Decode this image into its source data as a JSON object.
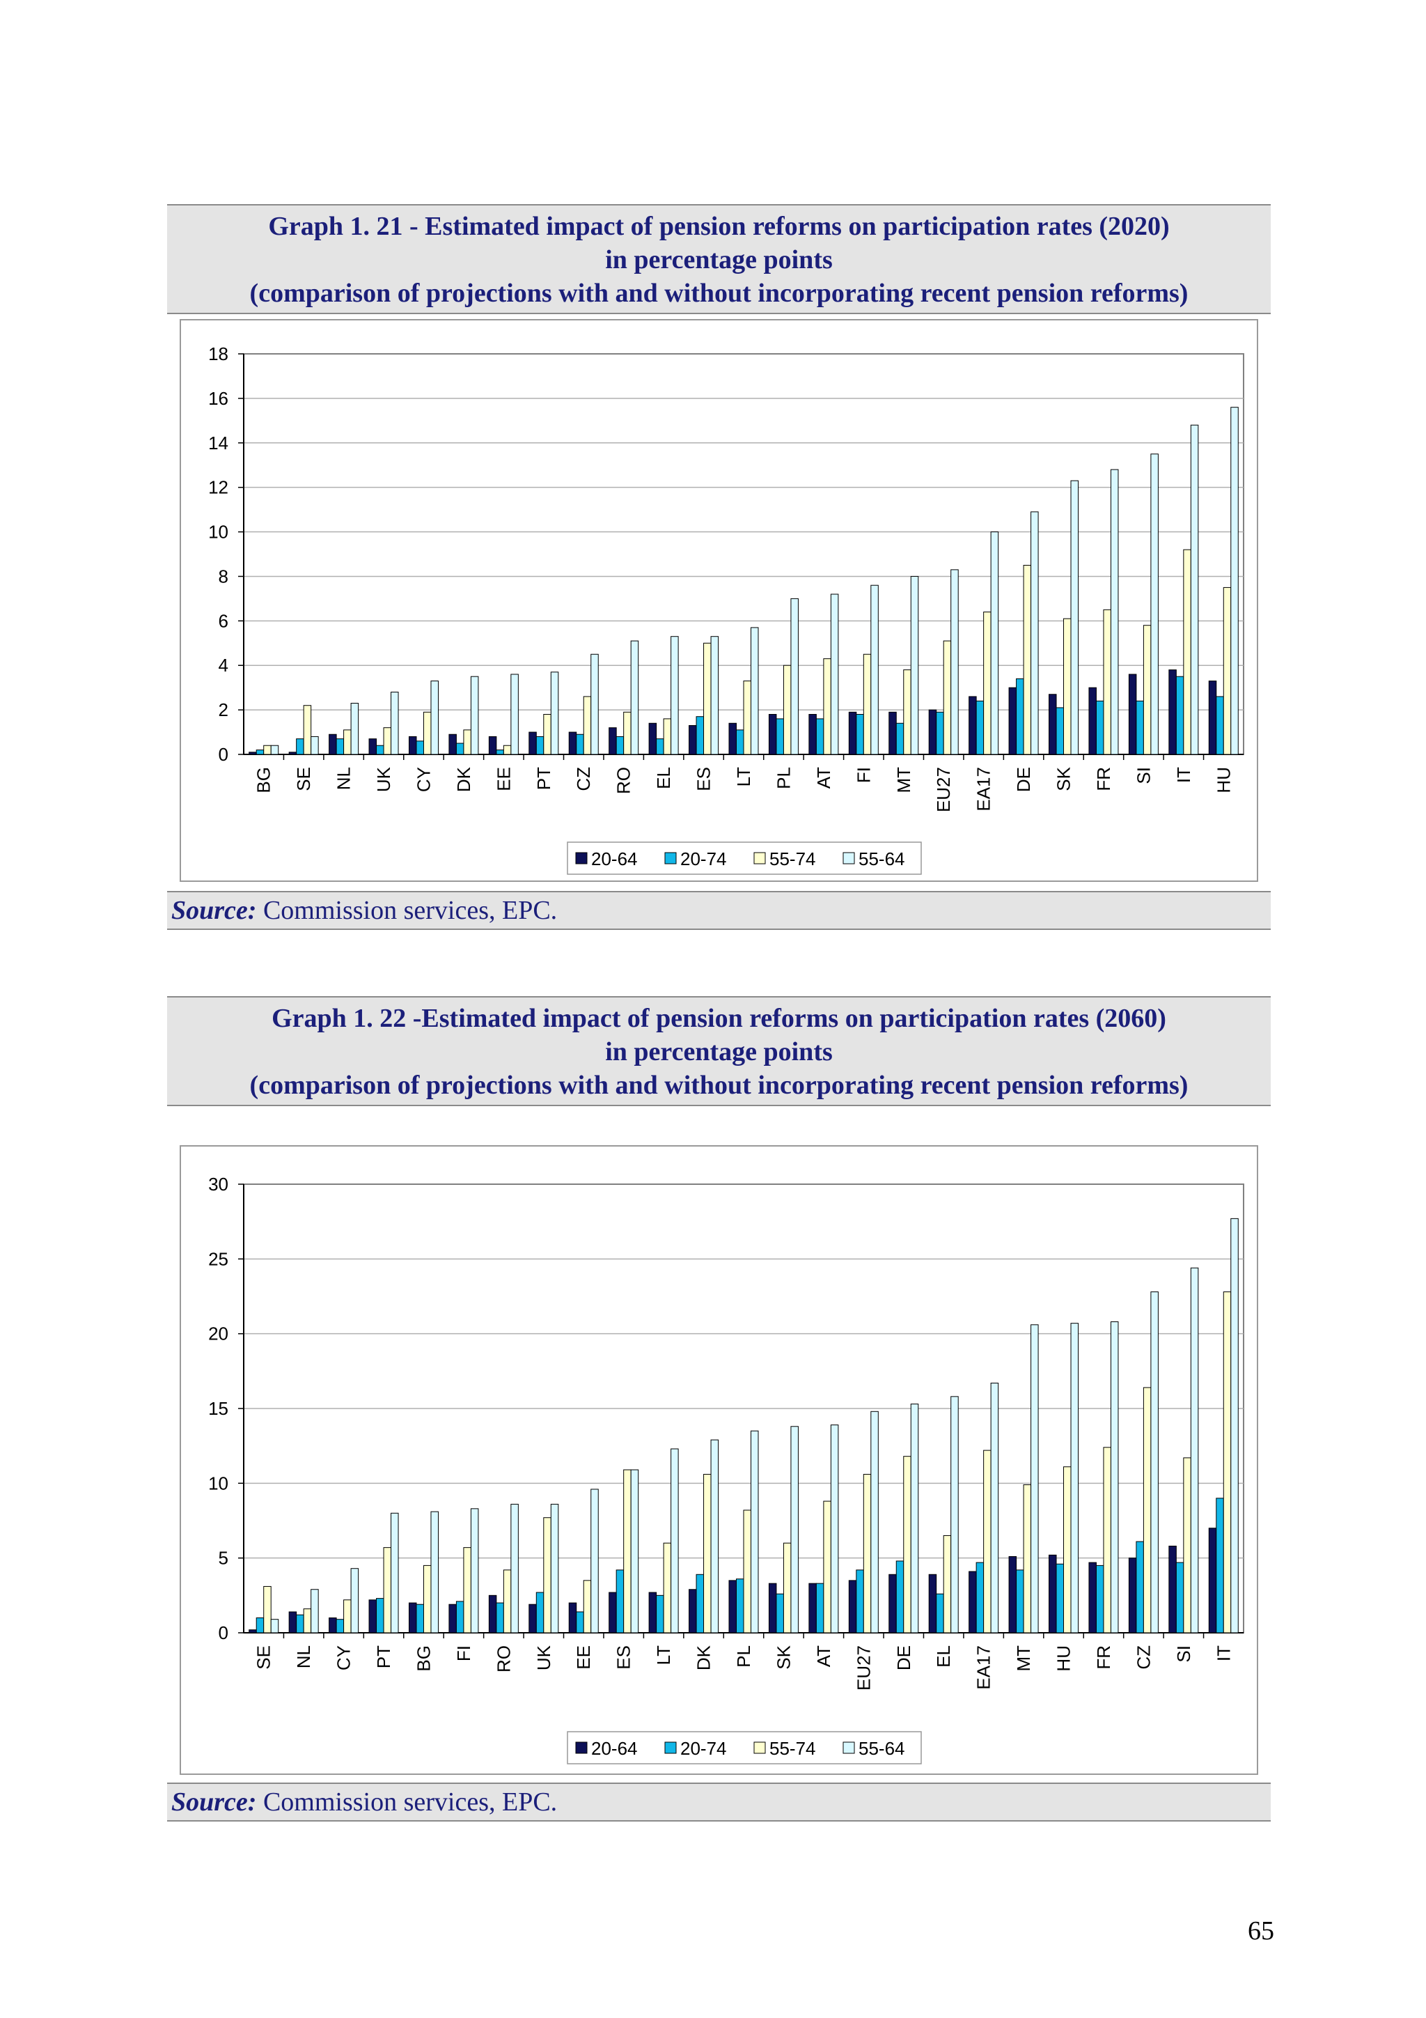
{
  "colors": {
    "20-64": "#0d1057",
    "20-74": "#11b7e8",
    "55-74": "#ffffd0",
    "55-64": "#d8f8ff",
    "header_text": "#1b1f7a"
  },
  "graphs": [
    {
      "title_lines": [
        "Graph 1. 21 - Estimated impact of pension reforms on participation rates (2020)",
        "in percentage points",
        "(comparison of projections with and without incorporating recent pension reforms)"
      ],
      "source_label": "Source:",
      "source_text": " Commission services, EPC."
    },
    {
      "title_lines": [
        "Graph 1. 22 -Estimated impact of pension reforms on participation rates (2060)",
        "in percentage points",
        "(comparison of projections with and without incorporating recent pension reforms)"
      ],
      "source_label": "Source:",
      "source_text": " Commission services, EPC."
    }
  ],
  "page_number": "65",
  "chart_data": [
    {
      "type": "bar",
      "ylim": [
        0,
        18
      ],
      "yticks": [
        0,
        2,
        4,
        6,
        8,
        10,
        12,
        14,
        16,
        18
      ],
      "grid": true,
      "legend_position": "bottom",
      "categories": [
        "BG",
        "SE",
        "NL",
        "UK",
        "CY",
        "DK",
        "EE",
        "PT",
        "CZ",
        "RO",
        "EL",
        "ES",
        "LT",
        "PL",
        "AT",
        "FI",
        "MT",
        "EU27",
        "EA17",
        "DE",
        "SK",
        "FR",
        "SI",
        "IT",
        "HU"
      ],
      "series": [
        {
          "name": "20-64",
          "values": [
            0.1,
            0.1,
            0.9,
            0.7,
            0.8,
            0.9,
            0.8,
            1.0,
            1.0,
            1.2,
            1.4,
            1.3,
            1.4,
            1.8,
            1.8,
            1.9,
            1.9,
            2.0,
            2.6,
            3.0,
            2.7,
            3.0,
            3.6,
            3.8,
            3.3
          ]
        },
        {
          "name": "20-74",
          "values": [
            0.2,
            0.7,
            0.7,
            0.4,
            0.6,
            0.5,
            0.2,
            0.8,
            0.9,
            0.8,
            0.7,
            1.7,
            1.1,
            1.6,
            1.6,
            1.8,
            1.4,
            1.9,
            2.4,
            3.4,
            2.1,
            2.4,
            2.4,
            3.5,
            2.6
          ]
        },
        {
          "name": "55-74",
          "values": [
            0.4,
            2.2,
            1.1,
            1.2,
            1.9,
            1.1,
            0.4,
            1.8,
            2.6,
            1.9,
            1.6,
            5.0,
            3.3,
            4.0,
            4.3,
            4.5,
            3.8,
            5.1,
            6.4,
            8.5,
            6.1,
            6.5,
            5.8,
            9.2,
            7.5
          ]
        },
        {
          "name": "55-64",
          "values": [
            0.4,
            0.8,
            2.3,
            2.8,
            3.3,
            3.5,
            3.6,
            3.7,
            4.5,
            5.1,
            5.3,
            5.3,
            5.7,
            7.0,
            7.2,
            7.6,
            8.0,
            8.3,
            10.0,
            10.9,
            12.3,
            12.8,
            13.5,
            14.8,
            15.6
          ]
        }
      ]
    },
    {
      "type": "bar",
      "ylim": [
        0,
        30
      ],
      "yticks": [
        0,
        5,
        10,
        15,
        20,
        25,
        30
      ],
      "grid": true,
      "legend_position": "bottom",
      "categories": [
        "SE",
        "NL",
        "CY",
        "PT",
        "BG",
        "FI",
        "RO",
        "UK",
        "EE",
        "ES",
        "LT",
        "DK",
        "PL",
        "SK",
        "AT",
        "EU27",
        "DE",
        "EL",
        "EA17",
        "MT",
        "HU",
        "FR",
        "CZ",
        "SI",
        "IT"
      ],
      "series": [
        {
          "name": "20-64",
          "values": [
            0.2,
            1.4,
            1.0,
            2.2,
            2.0,
            1.9,
            2.5,
            1.9,
            2.0,
            2.7,
            2.7,
            2.9,
            3.5,
            3.3,
            3.3,
            3.5,
            3.9,
            3.9,
            4.1,
            5.1,
            5.2,
            4.7,
            5.0,
            5.8,
            7.0
          ]
        },
        {
          "name": "20-74",
          "values": [
            1.0,
            1.2,
            0.9,
            2.3,
            1.9,
            2.1,
            2.0,
            2.7,
            1.4,
            4.2,
            2.5,
            3.9,
            3.6,
            2.6,
            3.3,
            4.2,
            4.8,
            2.6,
            4.7,
            4.2,
            4.6,
            4.5,
            6.1,
            4.7,
            9.0
          ]
        },
        {
          "name": "55-74",
          "values": [
            3.1,
            1.6,
            2.2,
            5.7,
            4.5,
            5.7,
            4.2,
            7.7,
            3.5,
            10.9,
            6.0,
            10.6,
            8.2,
            6.0,
            8.8,
            10.6,
            11.8,
            6.5,
            12.2,
            9.9,
            11.1,
            12.4,
            16.4,
            11.7,
            22.8
          ]
        },
        {
          "name": "55-64",
          "values": [
            0.9,
            2.9,
            4.3,
            8.0,
            8.1,
            8.3,
            8.6,
            8.6,
            9.6,
            10.9,
            12.3,
            12.9,
            13.5,
            13.8,
            13.9,
            14.8,
            15.3,
            15.8,
            16.7,
            20.6,
            20.7,
            20.8,
            22.8,
            24.4,
            27.7
          ]
        }
      ]
    }
  ]
}
